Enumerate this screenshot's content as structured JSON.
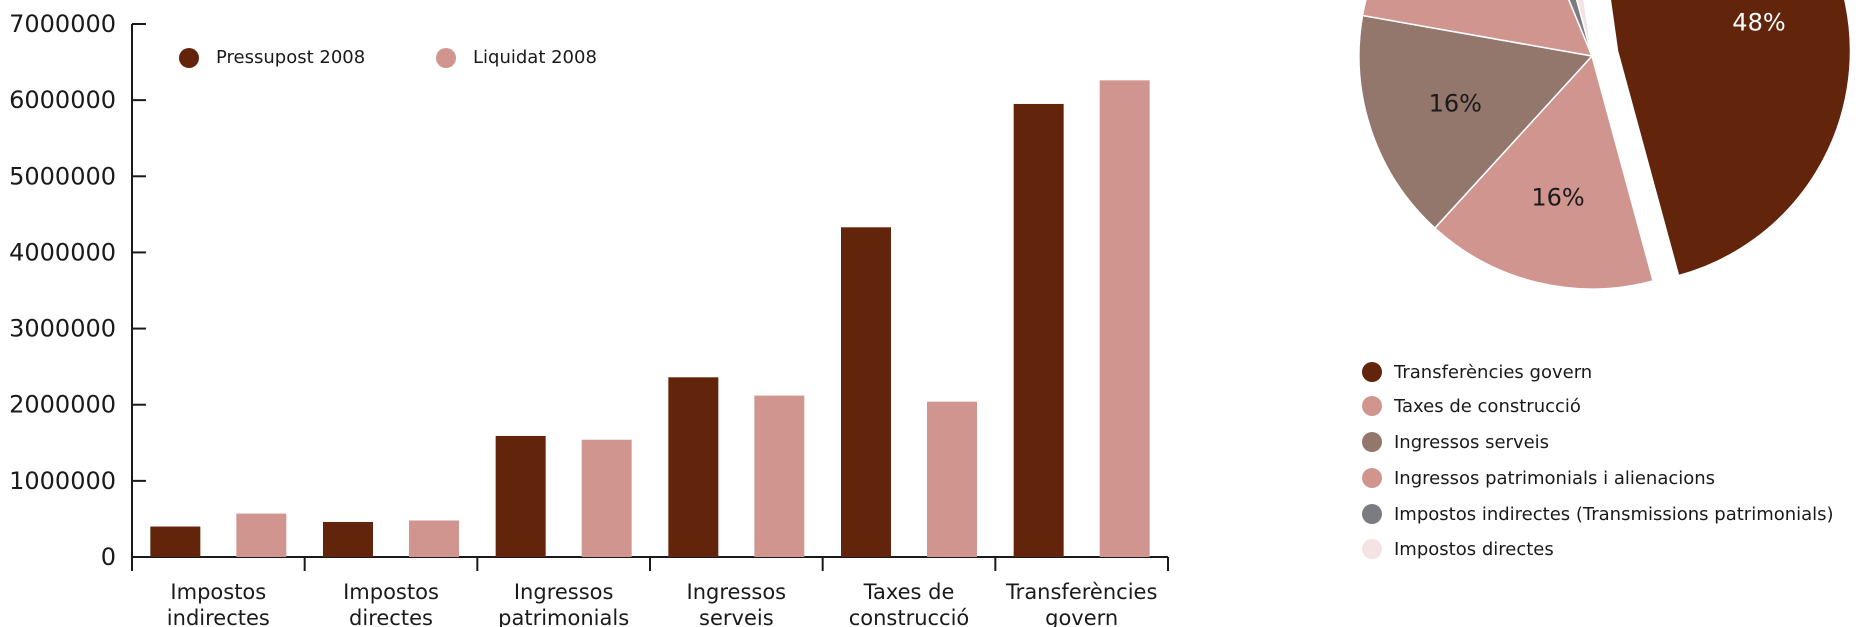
{
  "chart_data": [
    {
      "type": "bar",
      "categories": [
        [
          "Impostos",
          "indirectes"
        ],
        [
          "Impostos",
          "directes"
        ],
        [
          "Ingressos",
          "patrimonials"
        ],
        [
          "Ingressos",
          "serveis"
        ],
        [
          "Taxes de",
          "construcció"
        ],
        [
          "Transferències",
          "govern"
        ]
      ],
      "series": [
        {
          "name": "Pressupost 2008",
          "color": "#62240a",
          "values": [
            400000,
            460000,
            1590000,
            2360000,
            4330000,
            5950000
          ]
        },
        {
          "name": "Liquidat 2008",
          "color": "#d19590",
          "values": [
            570000,
            480000,
            1540000,
            2120000,
            2040000,
            6260000
          ]
        }
      ],
      "ylim": [
        0,
        7000000
      ],
      "yticks": [
        "0",
        "1000000",
        "2000000",
        "3000000",
        "4000000",
        "5000000",
        "6000000",
        "7000000"
      ],
      "legend_position": "top-left"
    },
    {
      "type": "pie",
      "slices": [
        {
          "name": "Transferències govern",
          "value": 48,
          "label": "48%",
          "color": "#62240a",
          "label_color": "#ffffff",
          "exploded": true
        },
        {
          "name": "Taxes de construcció",
          "value": 16,
          "label": "16%",
          "color": "#d19590",
          "label_color": "#1a1a1a"
        },
        {
          "name": "Ingressos serveis",
          "value": 16,
          "label": "16%",
          "color": "#93766c",
          "label_color": "#1a1a1a"
        },
        {
          "name": "Ingressos patrimonials i alienacions",
          "value": 16,
          "label": "",
          "color": "#d19590"
        },
        {
          "name": "Impostos indirectes (Transmissions patrimonials)",
          "value": 2,
          "label": "",
          "color": "#7a7c82"
        },
        {
          "name": "Impostos directes",
          "value": 2,
          "label": "",
          "color": "#f3e4e3"
        }
      ],
      "legend_position": "bottom"
    }
  ]
}
